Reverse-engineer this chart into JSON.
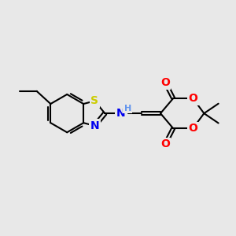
{
  "background_color": "#e8e8e8",
  "bond_color": "#000000",
  "bond_width": 1.5,
  "atom_colors": {
    "S": "#cccc00",
    "N": "#0000ee",
    "O": "#ff0000",
    "H": "#6495ed",
    "C": "#000000"
  },
  "font_size": 9,
  "figsize": [
    3.0,
    3.0
  ],
  "dpi": 100
}
